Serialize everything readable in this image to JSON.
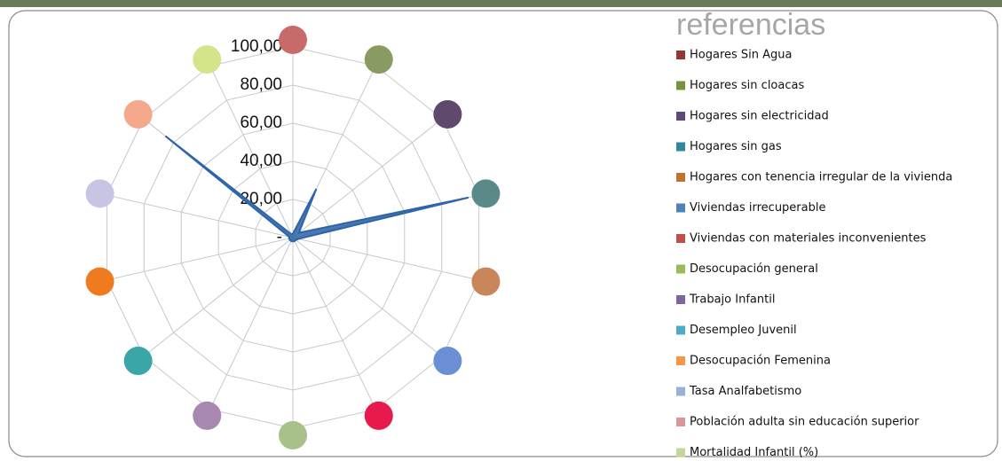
{
  "chart_data": {
    "type": "radar",
    "legend_title": "referencias",
    "categories": [
      "Hogares Sin Agua",
      "Hogares sin cloacas",
      "Hogares sin electricidad",
      "Hogares sin gas",
      "Hogares con tenencia irregular de la vivienda",
      "Viviendas irrecuperable",
      "Viviendas con materiales inconvenientes",
      "Desocupación general",
      "Trabajo Infantil",
      "Desempleo Juvenil",
      "Desocupación Femenina",
      "Tasa Analfabetismo",
      "Población adulta  sin educación superior",
      "Mortalidad Infantil (%)"
    ],
    "category_colors": [
      "#953735",
      "#77933c",
      "#5f497a",
      "#31859c",
      "#c0732e",
      "#4f81bd",
      "#c0504d",
      "#9bbb59",
      "#8064a2",
      "#4bacc6",
      "#f79646",
      "#95b3d7",
      "#d99694",
      "#c3d69b"
    ],
    "marker_colors": [
      "#c96a6a",
      "#8a9a63",
      "#5f4a6e",
      "#5a8a87",
      "#c8865a",
      "#6a8fd4",
      "#e8194d",
      "#a8c08a",
      "#a888b0",
      "#3aa6a8",
      "#f07a1e",
      "#c8c4e4",
      "#f4a88c",
      "#d4e48a"
    ],
    "series": [
      {
        "color": "#2e64a8",
        "values": [
          2,
          28,
          4,
          94,
          3,
          2,
          2,
          2,
          2,
          2,
          2,
          2,
          85,
          2
        ]
      }
    ],
    "ylim": [
      0,
      100
    ],
    "yticks": [
      {
        "value": 0,
        "label": "-"
      },
      {
        "value": 20,
        "label": "20,00"
      },
      {
        "value": 40,
        "label": "40,00"
      },
      {
        "value": 60,
        "label": "60,00"
      },
      {
        "value": 80,
        "label": "80,00"
      },
      {
        "value": 100,
        "label": "100,00"
      }
    ],
    "grid": true
  }
}
